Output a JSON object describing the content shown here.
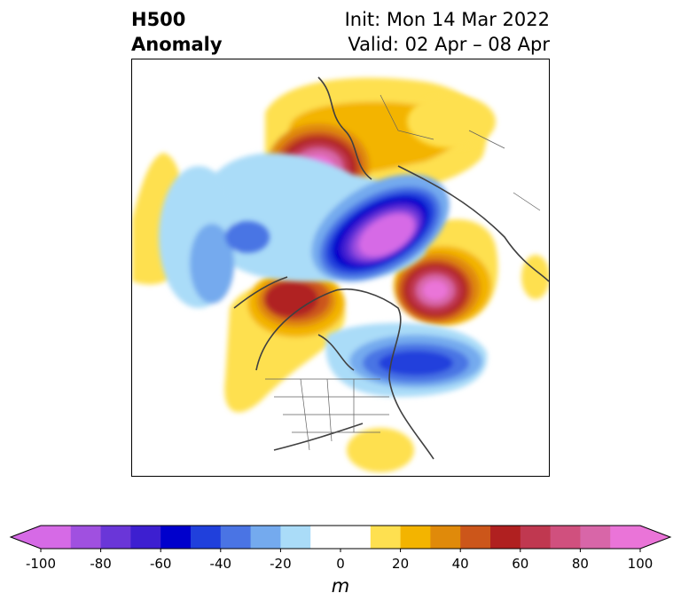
{
  "title": {
    "left_line1": "H500",
    "left_line2": "Anomaly",
    "init": "Init: Mon 14 Mar 2022",
    "valid": "Valid: 02 Apr – 08 Apr"
  },
  "colorbar": {
    "unit": "m",
    "min": -100,
    "max": 100,
    "step": 10,
    "extend": "both",
    "colors": [
      "#d66ae6",
      "#a050e0",
      "#6a36d8",
      "#3d1fd0",
      "#0000cc",
      "#2040dc",
      "#4a74e4",
      "#74aaee",
      "#aadcf8",
      "#ffffff",
      "#ffffff",
      "#fee050",
      "#f3b400",
      "#e08a0a",
      "#cc561a",
      "#b02020",
      "#c03850",
      "#d0507e",
      "#d866a8",
      "#ea74d8"
    ],
    "ticks": [
      "-100",
      "-80",
      "-60",
      "-40",
      "-20",
      "0",
      "20",
      "40",
      "60",
      "80",
      "100"
    ]
  }
}
